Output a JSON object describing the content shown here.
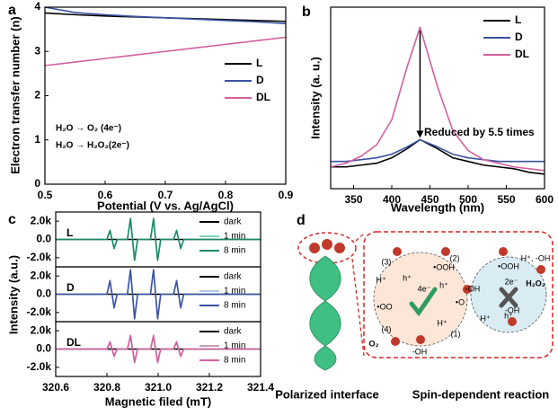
{
  "chart_data": [
    {
      "type": "line",
      "panel": "a",
      "xlabel": "Potential (V vs. Ag/AgCl)",
      "ylabel": "Electron transfer number (n)",
      "xlim": [
        0.5,
        0.9
      ],
      "ylim": [
        0,
        4
      ],
      "xticks": [
        0.5,
        0.6,
        0.7,
        0.8,
        0.9
      ],
      "yticks": [
        0,
        1,
        2,
        3,
        4
      ],
      "x": [
        0.5,
        0.55,
        0.6,
        0.65,
        0.7,
        0.75,
        0.8,
        0.85,
        0.9
      ],
      "series": [
        {
          "name": "L",
          "color": "#000000",
          "values": [
            3.87,
            3.83,
            3.8,
            3.78,
            3.76,
            3.74,
            3.72,
            3.7,
            3.68
          ]
        },
        {
          "name": "D",
          "color": "#3a52a3",
          "values": [
            4.0,
            3.88,
            3.83,
            3.79,
            3.76,
            3.73,
            3.7,
            3.67,
            3.63
          ]
        },
        {
          "name": "DL",
          "color": "#d2609f",
          "values": [
            2.68,
            2.76,
            2.84,
            2.92,
            3.0,
            3.08,
            3.16,
            3.24,
            3.32
          ]
        }
      ],
      "legend": "right",
      "annotations": [
        "H₂O → O₂ (4e⁻)",
        "H₂O → H₂O₂(2e⁻)"
      ]
    },
    {
      "type": "line",
      "panel": "b",
      "xlabel": "Wavelength (nm)",
      "ylabel": "Intensity (a. u.)",
      "xlim": [
        320,
        600
      ],
      "ylim": [
        0,
        1
      ],
      "xticks": [
        350,
        400,
        450,
        500,
        550,
        600
      ],
      "x": [
        320,
        340,
        360,
        380,
        400,
        420,
        437,
        460,
        480,
        500,
        520,
        540,
        560,
        580,
        600
      ],
      "series": [
        {
          "name": "L",
          "color": "#000000",
          "values": [
            0.12,
            0.12,
            0.13,
            0.14,
            0.17,
            0.22,
            0.27,
            0.22,
            0.17,
            0.15,
            0.13,
            0.12,
            0.11,
            0.09,
            0.08
          ]
        },
        {
          "name": "D",
          "color": "#3a52a3",
          "values": [
            0.15,
            0.15,
            0.16,
            0.17,
            0.19,
            0.23,
            0.27,
            0.23,
            0.19,
            0.17,
            0.16,
            0.15,
            0.15,
            0.15,
            0.15
          ]
        },
        {
          "name": "DL",
          "color": "#d2609f",
          "values": [
            0.12,
            0.14,
            0.18,
            0.24,
            0.38,
            0.67,
            0.89,
            0.56,
            0.32,
            0.21,
            0.16,
            0.14,
            0.12,
            0.11,
            0.1
          ]
        }
      ],
      "legend": "upper right",
      "annotations": [
        "Reduced by 5.5 times"
      ]
    },
    {
      "type": "line",
      "panel": "c",
      "label": "L",
      "ylabel": "Intensity (a.u.)",
      "xlim": [
        320.6,
        321.4
      ],
      "ylim": [
        -3000,
        3000
      ],
      "yticks": [
        {
          "value": 2000,
          "label": "2.0k"
        },
        {
          "value": 0,
          "label": "0.0"
        },
        {
          "value": -2000,
          "label": "-2.0k"
        }
      ],
      "x": [
        320.6,
        320.8,
        320.812,
        320.82,
        320.828,
        320.84,
        320.88,
        320.892,
        320.9,
        320.908,
        320.92,
        320.97,
        320.982,
        320.99,
        320.998,
        321.01,
        321.06,
        321.072,
        321.08,
        321.088,
        321.1,
        321.4
      ],
      "series": [
        {
          "name": "dark",
          "color": "#000000",
          "values": [
            0,
            0,
            0,
            0,
            0,
            0,
            0,
            0,
            0,
            0,
            0,
            0,
            0,
            0,
            0,
            0,
            0,
            0,
            0,
            0,
            0,
            0
          ]
        },
        {
          "name": "1 min",
          "color": "#7fd4b0",
          "values": [
            0,
            0,
            900,
            0,
            -900,
            0,
            0,
            2100,
            0,
            -2100,
            0,
            0,
            2100,
            0,
            -2100,
            0,
            0,
            900,
            0,
            -900,
            0,
            0
          ]
        },
        {
          "name": "8 min",
          "color": "#1a8a6a",
          "values": [
            0,
            0,
            1000,
            0,
            -1000,
            0,
            0,
            2300,
            0,
            -2300,
            0,
            0,
            2300,
            0,
            -2300,
            0,
            0,
            1000,
            0,
            -1000,
            0,
            0
          ]
        }
      ],
      "legend": "upper right"
    },
    {
      "type": "line",
      "label": "D",
      "xlim": [
        320.6,
        321.4
      ],
      "ylim": [
        -3000,
        3000
      ],
      "yticks": [
        {
          "value": 2000,
          "label": "2.0k"
        },
        {
          "value": 0,
          "label": "0.0"
        },
        {
          "value": -2000,
          "label": "-2.0k"
        }
      ],
      "x": [
        320.6,
        320.8,
        320.812,
        320.82,
        320.828,
        320.84,
        320.88,
        320.892,
        320.9,
        320.908,
        320.92,
        320.97,
        320.982,
        320.99,
        320.998,
        321.01,
        321.06,
        321.072,
        321.08,
        321.088,
        321.1,
        321.4
      ],
      "series": [
        {
          "name": "dark",
          "color": "#000000",
          "values": [
            0,
            0,
            0,
            0,
            0,
            0,
            0,
            0,
            0,
            0,
            0,
            0,
            0,
            0,
            0,
            0,
            0,
            0,
            0,
            0,
            0,
            0
          ]
        },
        {
          "name": "1 min",
          "color": "#a9c6e8",
          "values": [
            0,
            0,
            1300,
            0,
            -1300,
            0,
            0,
            2500,
            0,
            -2500,
            0,
            0,
            2500,
            0,
            -2500,
            0,
            0,
            1300,
            0,
            -1300,
            0,
            0
          ]
        },
        {
          "name": "8 min",
          "color": "#3a52a3",
          "values": [
            0,
            0,
            1500,
            0,
            -1500,
            0,
            0,
            2700,
            0,
            -2700,
            0,
            0,
            2700,
            0,
            -2700,
            0,
            0,
            1500,
            0,
            -1500,
            0,
            0
          ]
        }
      ],
      "legend": "upper right"
    },
    {
      "type": "line",
      "label": "DL",
      "xlabel": "Magnetic filed (mT)",
      "xlim": [
        320.6,
        321.4
      ],
      "ylim": [
        -3000,
        3000
      ],
      "xticks": [
        320.6,
        320.8,
        {
          "value": 321,
          "label": "321.0"
        },
        321.2,
        321.4
      ],
      "yticks": [
        {
          "value": 2000,
          "label": "2.0k"
        },
        {
          "value": 0,
          "label": "0.0"
        },
        {
          "value": -2000,
          "label": "-2.0k"
        }
      ],
      "x": [
        320.6,
        320.8,
        320.812,
        320.82,
        320.828,
        320.84,
        320.88,
        320.892,
        320.9,
        320.908,
        320.92,
        320.97,
        320.982,
        320.99,
        320.998,
        321.01,
        321.06,
        321.072,
        321.08,
        321.088,
        321.1,
        321.4
      ],
      "series": [
        {
          "name": "dark",
          "color": "#000000",
          "values": [
            0,
            0,
            0,
            0,
            0,
            0,
            0,
            0,
            0,
            0,
            0,
            0,
            0,
            0,
            0,
            0,
            0,
            0,
            0,
            0,
            0,
            0
          ]
        },
        {
          "name": "1 min",
          "color": "#c7a0b0",
          "values": [
            0,
            0,
            700,
            0,
            -700,
            0,
            0,
            1300,
            0,
            -1300,
            0,
            0,
            1300,
            0,
            -1300,
            0,
            0,
            700,
            0,
            -700,
            0,
            0
          ]
        },
        {
          "name": "8 min",
          "color": "#d2609f",
          "values": [
            0,
            0,
            800,
            0,
            -800,
            0,
            0,
            1500,
            0,
            -1500,
            0,
            0,
            1500,
            0,
            -1500,
            0,
            0,
            800,
            0,
            -800,
            0,
            0
          ]
        }
      ],
      "legend": "upper right"
    }
  ],
  "diagram": {
    "panel": "d",
    "left_caption": "Polarized interface",
    "right_caption": "Spin-dependent reaction",
    "labels": [
      "(3)",
      "(2)",
      "(4)",
      "(1)",
      "4e⁻",
      "2e⁻",
      "•OOH",
      "•OO",
      "•O",
      "-OH",
      "•OOH",
      "H⁺, -OH",
      "-OH",
      "H₂O₂",
      "O₂",
      "H⁺",
      "h⁺",
      "h⁺",
      "H⁺",
      "h⁺",
      "H⁺",
      "-OH"
    ]
  }
}
